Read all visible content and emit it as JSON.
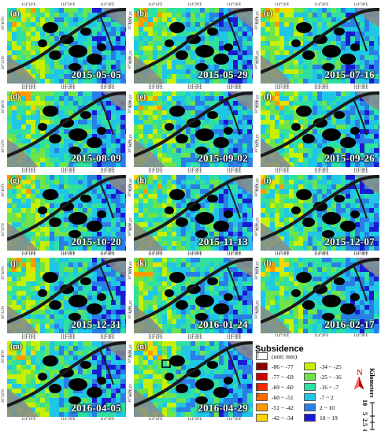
{
  "panels": [
    {
      "label": "(a)",
      "date": "2015-05-05"
    },
    {
      "label": "(b)",
      "date": "2015-05-29"
    },
    {
      "label": "(c)",
      "date": "2015-07-16"
    },
    {
      "label": "(d)",
      "date": "2015-08-09"
    },
    {
      "label": "(e)",
      "date": "2015-09-02"
    },
    {
      "label": "(f)",
      "date": "2015-09-26"
    },
    {
      "label": "(g)",
      "date": "2015-10-20"
    },
    {
      "label": "(h)",
      "date": "2015-11-13"
    },
    {
      "label": "(i)",
      "date": "2015-12-07"
    },
    {
      "label": "(j)",
      "date": "2015-12-31"
    },
    {
      "label": "(k)",
      "date": "2016-01-24"
    },
    {
      "label": "(l)",
      "date": "2016-02-17"
    },
    {
      "label": "(m)",
      "date": "2016-04-05"
    },
    {
      "label": "(n)",
      "date": "2016-04-29"
    }
  ],
  "axis": {
    "top_ticks": [
      "114°10′E",
      "114°20′E",
      "114°30′E"
    ],
    "bottom_ticks": [
      "114°10′E",
      "114°20′E",
      "114°30′E"
    ],
    "left_ticks": [
      "30°40′N",
      "30°32′N"
    ],
    "right_ticks": [
      "30°40′N",
      "30°32′N"
    ]
  },
  "legend": {
    "title": "Subsidence",
    "unit": "(unit: mm)",
    "classes": [
      {
        "label": "-86 ~ -77",
        "color": "#8b0000"
      },
      {
        "label": "-77 ~ -69",
        "color": "#cc0000"
      },
      {
        "label": "-69 ~ -60",
        "color": "#ff2a00"
      },
      {
        "label": "-60 ~ -51",
        "color": "#ff6a00"
      },
      {
        "label": "-51 ~ -42",
        "color": "#ff9a00"
      },
      {
        "label": "-42 ~ -34",
        "color": "#ffd400"
      },
      {
        "label": "-34 ~ -25",
        "color": "#c8f000"
      },
      {
        "label": "-25 ~ -16",
        "color": "#6fe34a"
      },
      {
        "label": "-16 ~ -7",
        "color": "#2fe0a0"
      },
      {
        "label": "-7 ~ 2",
        "color": "#1fc6e6"
      },
      {
        "label": "2 ~ 10",
        "color": "#2a7fe6"
      },
      {
        "label": "10 ~ 19",
        "color": "#1a1ad2"
      }
    ]
  },
  "north": {
    "letter": "N"
  },
  "scale": {
    "unit": "Kilometers",
    "ticks": [
      "0",
      "2.5",
      "5",
      "10"
    ]
  }
}
